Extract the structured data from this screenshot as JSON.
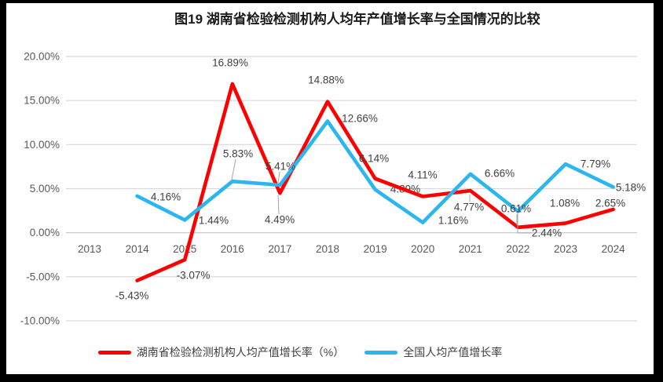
{
  "chart_data": {
    "type": "line",
    "title": "图19 湖南省检验检测机构人均年产值增长率与全国情况的比较",
    "categories": [
      "2013",
      "2014",
      "2015",
      "2016",
      "2017",
      "2018",
      "2019",
      "2020",
      "2021",
      "2022",
      "2023",
      "2024"
    ],
    "series": [
      {
        "name": "湖南省检验检测机构人均产值增长率（%）",
        "color": "#FF0000",
        "values": [
          null,
          -5.43,
          -3.07,
          16.89,
          4.49,
          14.88,
          6.14,
          4.11,
          4.77,
          0.61,
          1.08,
          2.65
        ]
      },
      {
        "name": "全国人均产值增长率",
        "color": "#2CB6F0",
        "values": [
          null,
          4.16,
          1.44,
          5.83,
          5.41,
          12.66,
          4.89,
          1.16,
          6.66,
          2.44,
          7.79,
          5.18
        ]
      }
    ],
    "ylim": [
      -10,
      20
    ],
    "ytick_step": 5,
    "y_tick_labels": [
      "20.00%",
      "15.00%",
      "10.00%",
      "5.00%",
      "0.00%",
      "-5.00%",
      "-10.00%"
    ],
    "data_label_suffix": "%",
    "grid": true,
    "legend_position": "bottom"
  },
  "colors": {
    "frame": "#000000",
    "background": "#FFFFFF",
    "grid": "#D9D9D9",
    "zero_axis": "#C6C6C6",
    "axis_text": "#595959",
    "data_label_text": "#404040",
    "leader_line": "#A6A6A6",
    "title_text": "#1A1A1A",
    "legend_text": "#404040"
  }
}
